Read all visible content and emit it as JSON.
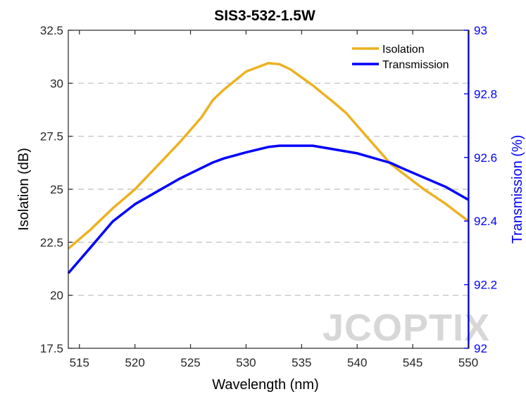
{
  "chart_data": {
    "type": "line",
    "title": "SIS3-532-1.5W",
    "xlabel": "Wavelength (nm)",
    "ylabel_left": "Isolation (dB)",
    "ylabel_right": "Transmission (%)",
    "xlim": [
      514,
      550
    ],
    "ylim_left": [
      17.5,
      32.5
    ],
    "ylim_right": [
      92,
      93
    ],
    "xticks": [
      "515",
      "520",
      "525",
      "530",
      "535",
      "540",
      "545",
      "550"
    ],
    "yticks_left": [
      "17.5",
      "20",
      "22.5",
      "25",
      "27.5",
      "30",
      "32.5"
    ],
    "yticks_right": [
      "92",
      "92.2",
      "92.4",
      "92.6",
      "92.8",
      "93"
    ],
    "grid": "horizontal dashed",
    "legend_position": "top-right",
    "watermark": "JCOPTIX",
    "colors": {
      "isolation": "#EDB120",
      "transmission": "#0000FF",
      "right_axis": "#0000FF"
    },
    "series": [
      {
        "name": "Isolation",
        "axis": "left",
        "x": [
          514,
          516,
          518,
          520,
          522,
          524,
          526,
          527,
          528,
          530,
          532,
          533,
          534,
          536,
          538,
          539,
          540,
          542,
          543,
          544,
          546,
          548,
          550
        ],
        "values": [
          22.2,
          23.1,
          24.1,
          25.0,
          26.1,
          27.2,
          28.4,
          29.2,
          29.7,
          30.55,
          30.95,
          30.9,
          30.65,
          29.9,
          29.05,
          28.6,
          28.0,
          26.8,
          26.2,
          25.8,
          25.0,
          24.3,
          23.5
        ]
      },
      {
        "name": "Transmission",
        "axis": "right",
        "x": [
          514,
          516,
          518,
          520,
          522,
          524,
          526,
          527,
          528,
          530,
          532,
          533,
          534,
          536,
          538,
          540,
          542,
          543,
          544,
          546,
          548,
          550
        ],
        "values": [
          92.236,
          92.317,
          92.399,
          92.453,
          92.493,
          92.533,
          92.567,
          92.584,
          92.597,
          92.616,
          92.633,
          92.637,
          92.637,
          92.637,
          92.625,
          92.613,
          92.593,
          92.583,
          92.567,
          92.537,
          92.507,
          92.467
        ]
      }
    ]
  }
}
